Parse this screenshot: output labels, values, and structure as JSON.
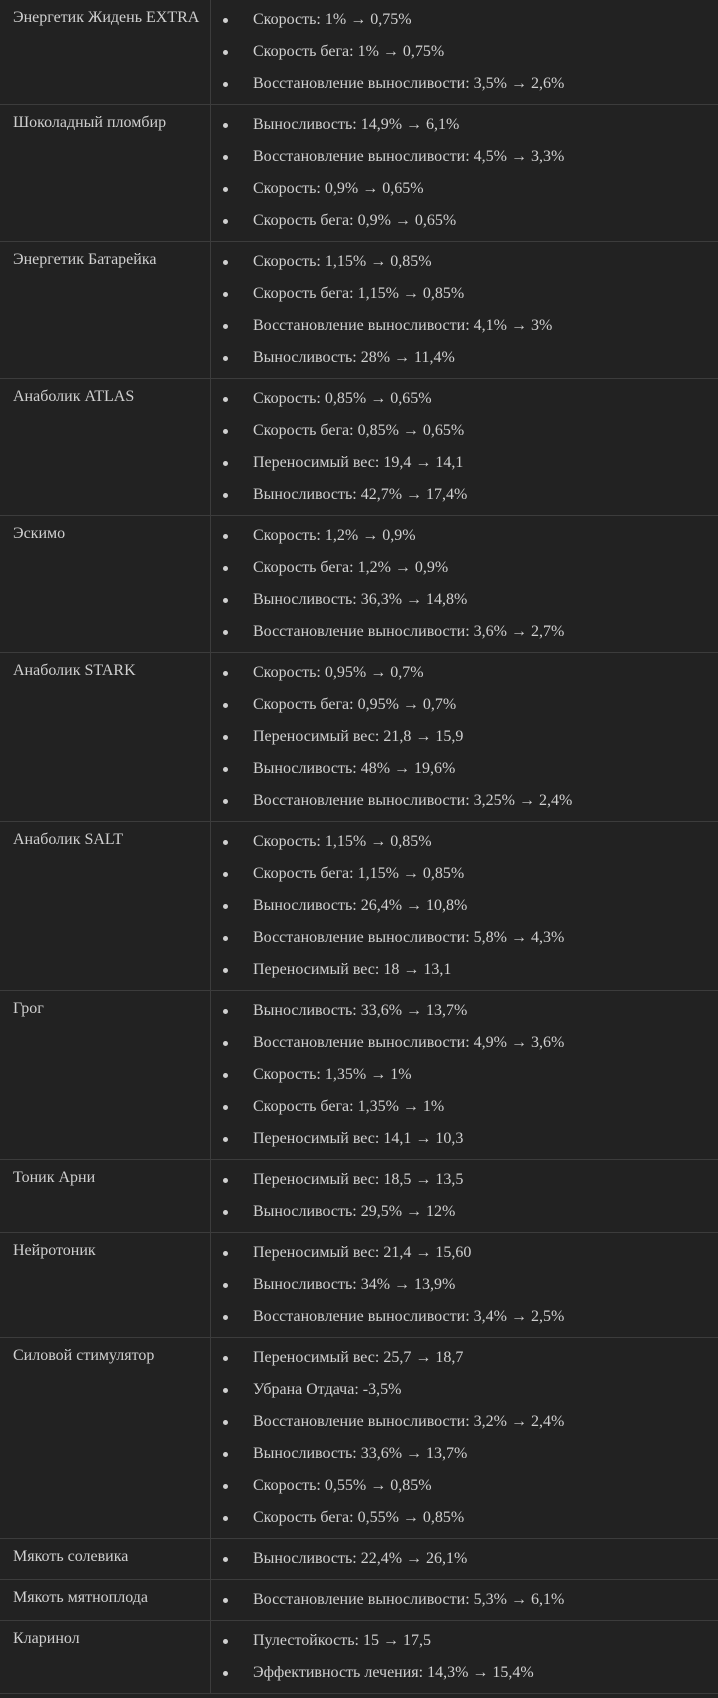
{
  "rows": [
    {
      "name": "Энергетик Жидень EXTRA",
      "items": [
        "Скорость: 1% → 0,75%",
        "Скорость бега: 1% → 0,75%",
        "Восстановление выносливости: 3,5% → 2,6%"
      ]
    },
    {
      "name": "Шоколадный пломбир",
      "items": [
        "Выносливость: 14,9% → 6,1%",
        "Восстановление выносливости: 4,5% → 3,3%",
        "Скорость: 0,9% → 0,65%",
        "Скорость бега: 0,9% → 0,65%"
      ]
    },
    {
      "name": "Энергетик Батарейка",
      "items": [
        "Скорость: 1,15% → 0,85%",
        "Скорость бега: 1,15% → 0,85%",
        "Восстановление выносливости: 4,1% → 3%",
        "Выносливость: 28% → 11,4%"
      ]
    },
    {
      "name": "Анаболик ATLAS",
      "items": [
        "Скорость: 0,85% → 0,65%",
        "Скорость бега: 0,85% → 0,65%",
        "Переносимый вес: 19,4 → 14,1",
        "Выносливость: 42,7% → 17,4%"
      ]
    },
    {
      "name": "Эскимо",
      "items": [
        "Скорость: 1,2% → 0,9%",
        "Скорость бега: 1,2% → 0,9%",
        "Выносливость: 36,3% → 14,8%",
        "Восстановление выносливости: 3,6% → 2,7%"
      ]
    },
    {
      "name": "Анаболик STARK",
      "items": [
        "Скорость: 0,95% → 0,7%",
        "Скорость бега: 0,95% → 0,7%",
        "Переносимый вес: 21,8 → 15,9",
        "Выносливость: 48% → 19,6%",
        "Восстановление выносливости: 3,25% → 2,4%"
      ]
    },
    {
      "name": "Анаболик SALT",
      "items": [
        "Скорость: 1,15% → 0,85%",
        "Скорость бега: 1,15% → 0,85%",
        "Выносливость: 26,4% → 10,8%",
        "Восстановление выносливости: 5,8% → 4,3%",
        "Переносимый вес: 18 → 13,1"
      ]
    },
    {
      "name": "Грог",
      "items": [
        "Выносливость: 33,6% → 13,7%",
        "Восстановление выносливости: 4,9% → 3,6%",
        "Скорость: 1,35% → 1%",
        "Скорость бега: 1,35% → 1%",
        "Переносимый вес: 14,1 → 10,3"
      ]
    },
    {
      "name": "Тоник Арни",
      "items": [
        "Переносимый вес: 18,5 → 13,5",
        "Выносливость: 29,5% → 12%"
      ]
    },
    {
      "name": "Нейротоник",
      "items": [
        "Переносимый вес: 21,4 → 15,60",
        "Выносливость: 34% → 13,9%",
        "Восстановление выносливости: 3,4% → 2,5%"
      ]
    },
    {
      "name": "Силовой стимулятор",
      "items": [
        "Переносимый вес: 25,7 → 18,7",
        "Убрана Отдача: -3,5%",
        "Восстановление выносливости: 3,2% → 2,4%",
        "Выносливость: 33,6% → 13,7%",
        "Скорость: 0,55% → 0,85%",
        "Скорость бега: 0,55% → 0,85%"
      ]
    },
    {
      "name": "Мякоть солевика",
      "items": [
        "Выносливость: 22,4% → 26,1%"
      ]
    },
    {
      "name": "Мякоть мятноплода",
      "items": [
        "Восстановление выносливости: 5,3% → 6,1%"
      ]
    },
    {
      "name": "Кларинол",
      "items": [
        "Пулестойкость: 15 → 17,5",
        "Эффективность лечения: 14,3% → 15,4%"
      ]
    }
  ]
}
